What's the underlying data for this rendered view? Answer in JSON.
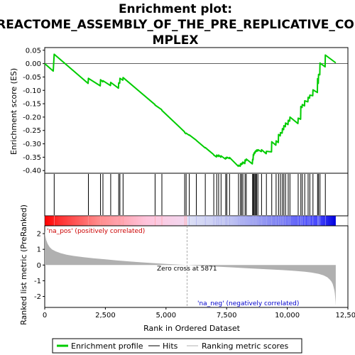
{
  "chart_data": {
    "type": "line",
    "title_line1": "Enrichment plot:",
    "title_line2": "REACTOME_ASSEMBLY_OF_THE_PRE_REPLICATIVE_CO",
    "title_line3": "MPLEX",
    "ylabel_top": "Enrichment score (ES)",
    "ylabel_bottom": "Ranked list metric (PreRanked)",
    "xlabel": "Rank in Ordered Dataset",
    "es_yticks": [
      "0.05",
      "0.00",
      "-0.05",
      "-0.10",
      "-0.15",
      "-0.20",
      "-0.25",
      "-0.30",
      "-0.35",
      "-0.40"
    ],
    "es_ytick_values": [
      0.05,
      0.0,
      -0.05,
      -0.1,
      -0.15,
      -0.2,
      -0.25,
      -0.3,
      -0.35,
      -0.4
    ],
    "es_ylim": [
      -0.41,
      0.06
    ],
    "metric_yticks": [
      "2",
      "1",
      "0",
      "-1",
      "-2"
    ],
    "metric_ytick_values": [
      2,
      1,
      0,
      -1,
      -2
    ],
    "metric_ylim": [
      -2.7,
      2.5
    ],
    "xticks": [
      "0",
      "2,500",
      "5,000",
      "7,500",
      "10,000",
      "12,500"
    ],
    "xtick_values": [
      0,
      2500,
      5000,
      7500,
      10000,
      12500
    ],
    "xlim": [
      0,
      12500
    ],
    "n_genes": 12000,
    "zero_cross_label": "Zero cross at 5871",
    "zero_cross": 5871,
    "pos_label": "'na_pos' (positively correlated)",
    "neg_label": "'na_neg' (negatively correlated)",
    "hits": [
      390,
      1800,
      2300,
      2400,
      2720,
      3050,
      3100,
      3230,
      4550,
      4830,
      5770,
      5830,
      5960,
      6250,
      6620,
      6970,
      7090,
      7170,
      7270,
      7460,
      7510,
      7620,
      7990,
      8070,
      8120,
      8170,
      8260,
      8310,
      8570,
      8600,
      8630,
      8670,
      8700,
      8740,
      8790,
      8940,
      9140,
      9360,
      9540,
      9640,
      9720,
      9800,
      9860,
      9930,
      10040,
      10110,
      10450,
      10560,
      10620,
      10720,
      10860,
      10930,
      11060,
      11250,
      11290,
      11350,
      11570
    ],
    "es_curve": {
      "x": [
        0,
        350,
        390,
        1790,
        1800,
        2290,
        2300,
        2390,
        2400,
        2710,
        2720,
        3040,
        3050,
        3090,
        3100,
        3220,
        3230,
        4540,
        4550,
        4820,
        4830,
        5760,
        5770,
        5820,
        5830,
        5950,
        5960,
        6240,
        6250,
        6610,
        6620,
        6960,
        6970,
        7080,
        7090,
        7160,
        7170,
        7260,
        7270,
        7450,
        7460,
        7500,
        7510,
        7610,
        7620,
        7980,
        7990,
        8060,
        8070,
        8110,
        8120,
        8160,
        8170,
        8250,
        8260,
        8300,
        8310,
        8560,
        8570,
        8590,
        8600,
        8620,
        8630,
        8660,
        8670,
        8690,
        8700,
        8730,
        8740,
        8780,
        8790,
        8930,
        8940,
        9130,
        9140,
        9350,
        9360,
        9530,
        9540,
        9630,
        9640,
        9710,
        9720,
        9790,
        9800,
        9850,
        9860,
        9920,
        9930,
        10030,
        10040,
        10100,
        10110,
        10440,
        10450,
        10550,
        10560,
        10610,
        10620,
        10710,
        10720,
        10850,
        10860,
        10920,
        10930,
        11050,
        11060,
        11240,
        11250,
        11280,
        11290,
        11340,
        11350,
        11560,
        11570,
        12000
      ],
      "y": [
        0.0,
        -0.028,
        0.035,
        -0.074,
        -0.055,
        -0.083,
        -0.06,
        -0.068,
        -0.064,
        -0.082,
        -0.07,
        -0.092,
        -0.072,
        -0.073,
        -0.055,
        -0.062,
        -0.052,
        -0.153,
        -0.155,
        -0.172,
        -0.175,
        -0.255,
        -0.258,
        -0.262,
        -0.26,
        -0.268,
        -0.267,
        -0.286,
        -0.287,
        -0.315,
        -0.314,
        -0.34,
        -0.342,
        -0.349,
        -0.342,
        -0.347,
        -0.342,
        -0.35,
        -0.345,
        -0.357,
        -0.352,
        -0.354,
        -0.35,
        -0.355,
        -0.351,
        -0.384,
        -0.38,
        -0.384,
        -0.375,
        -0.378,
        -0.372,
        -0.375,
        -0.368,
        -0.374,
        -0.36,
        -0.363,
        -0.357,
        -0.375,
        -0.358,
        -0.36,
        -0.34,
        -0.342,
        -0.334,
        -0.336,
        -0.329,
        -0.331,
        -0.326,
        -0.328,
        -0.323,
        -0.327,
        -0.322,
        -0.329,
        -0.322,
        -0.337,
        -0.328,
        -0.33,
        -0.292,
        -0.305,
        -0.289,
        -0.295,
        -0.265,
        -0.27,
        -0.258,
        -0.26,
        -0.243,
        -0.247,
        -0.232,
        -0.236,
        -0.222,
        -0.228,
        -0.212,
        -0.215,
        -0.2,
        -0.224,
        -0.204,
        -0.208,
        -0.16,
        -0.164,
        -0.153,
        -0.158,
        -0.139,
        -0.143,
        -0.126,
        -0.129,
        -0.118,
        -0.12,
        -0.098,
        -0.108,
        -0.056,
        -0.074,
        -0.04,
        -0.042,
        0.002,
        -0.012,
        0.032,
        0.003
      ]
    },
    "metric_curve": {
      "x": [
        0,
        20,
        60,
        120,
        200,
        300,
        450,
        650,
        900,
        1200,
        1600,
        2000,
        2500,
        3000,
        3500,
        4000,
        4500,
        5000,
        5500,
        5871,
        6300,
        6800,
        7300,
        7800,
        8300,
        8800,
        9300,
        9800,
        10300,
        10700,
        11000,
        11300,
        11500,
        11650,
        11750,
        11820,
        11870,
        11910,
        11940,
        11960,
        11975,
        11990,
        12000
      ],
      "y": [
        2.2,
        1.9,
        1.6,
        1.35,
        1.15,
        1.0,
        0.87,
        0.76,
        0.66,
        0.58,
        0.5,
        0.43,
        0.36,
        0.29,
        0.23,
        0.17,
        0.12,
        0.07,
        0.03,
        0.0,
        -0.04,
        -0.08,
        -0.12,
        -0.16,
        -0.2,
        -0.24,
        -0.28,
        -0.32,
        -0.37,
        -0.42,
        -0.48,
        -0.56,
        -0.66,
        -0.78,
        -0.92,
        -1.05,
        -1.2,
        -1.4,
        -1.6,
        -1.8,
        -2.05,
        -2.35,
        -2.6
      ]
    },
    "colors": {
      "es_line": "#00cc00",
      "hit": "#000000",
      "metric_fill": "#b0b0b0",
      "zero_line": "#c0c0c0",
      "pos_text": "#cc0000",
      "neg_text": "#0000cc",
      "bar_red": "#ff0000",
      "bar_blue": "#0000ff"
    },
    "legend": [
      "Enrichment profile",
      "Hits",
      "Ranking metric scores"
    ]
  }
}
